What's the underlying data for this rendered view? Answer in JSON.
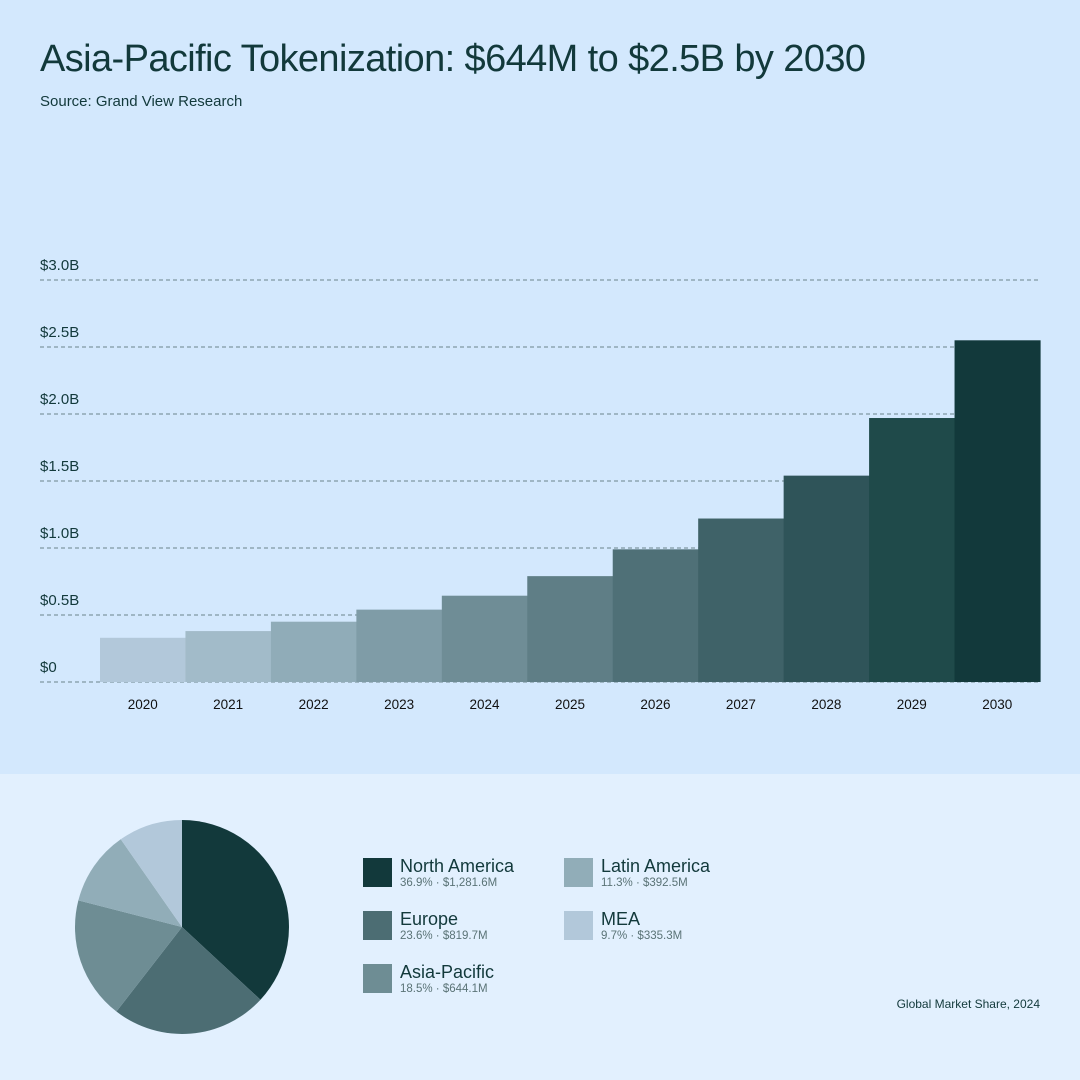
{
  "title": "Asia-Pacific Tokenization: $644M to $2.5B by 2030",
  "source": "Source: Grand View Research",
  "chart_data": [
    {
      "type": "bar",
      "title": "Asia-Pacific Tokenization: $644M to $2.5B by 2030",
      "xlabel": "",
      "ylabel": "",
      "categories": [
        "2020",
        "2021",
        "2022",
        "2023",
        "2024",
        "2025",
        "2026",
        "2027",
        "2028",
        "2029",
        "2030"
      ],
      "values": [
        0.33,
        0.38,
        0.45,
        0.54,
        0.644,
        0.79,
        0.99,
        1.22,
        1.54,
        1.97,
        2.55
      ],
      "value_unit": "billion USD",
      "ylim": [
        0,
        3.0
      ],
      "y_ticks": [
        0,
        0.5,
        1.0,
        1.5,
        2.0,
        2.5,
        3.0
      ],
      "y_tick_labels": [
        "$0",
        "$0.5B",
        "$1.0B",
        "$1.5B",
        "$2.0B",
        "$2.5B",
        "$3.0B"
      ],
      "grid": true,
      "colors": [
        "#b2c8da",
        "#a2bbc9",
        "#90acb8",
        "#7f9ca7",
        "#6f8d96",
        "#5f7e86",
        "#4f7077",
        "#3f6268",
        "#2f5459",
        "#1f4a4a",
        "#12393b"
      ]
    },
    {
      "type": "pie",
      "title": "Global Market Share, 2024",
      "slices": [
        {
          "name": "North America",
          "percent": 36.9,
          "value": "$1,281.6M",
          "color": "#12393b"
        },
        {
          "name": "Europe",
          "percent": 23.6,
          "value": "$819.7M",
          "color": "#4c6d73"
        },
        {
          "name": "Asia-Pacific",
          "percent": 18.5,
          "value": "$644.1M",
          "color": "#6e8d94"
        },
        {
          "name": "Latin America",
          "percent": 11.3,
          "value": "$392.5M",
          "color": "#91adb8"
        },
        {
          "name": "MEA",
          "percent": 9.7,
          "value": "$335.3M",
          "color": "#b2c8da"
        }
      ]
    }
  ],
  "legend": [
    {
      "name": "North America",
      "detail": "36.9% · $1,281.6M"
    },
    {
      "name": "Europe",
      "detail": "23.6% · $819.7M"
    },
    {
      "name": "Asia-Pacific",
      "detail": "18.5% · $644.1M"
    },
    {
      "name": "Latin America",
      "detail": "11.3% · $392.5M"
    },
    {
      "name": "MEA",
      "detail": "9.7% · $335.3M"
    }
  ],
  "pie_caption": "Global Market Share, 2024",
  "colors": {
    "background_top": "#d3e8fd",
    "background_bottom": "#e2f0fe",
    "text": "#12393b",
    "grid": "#5a7376"
  }
}
